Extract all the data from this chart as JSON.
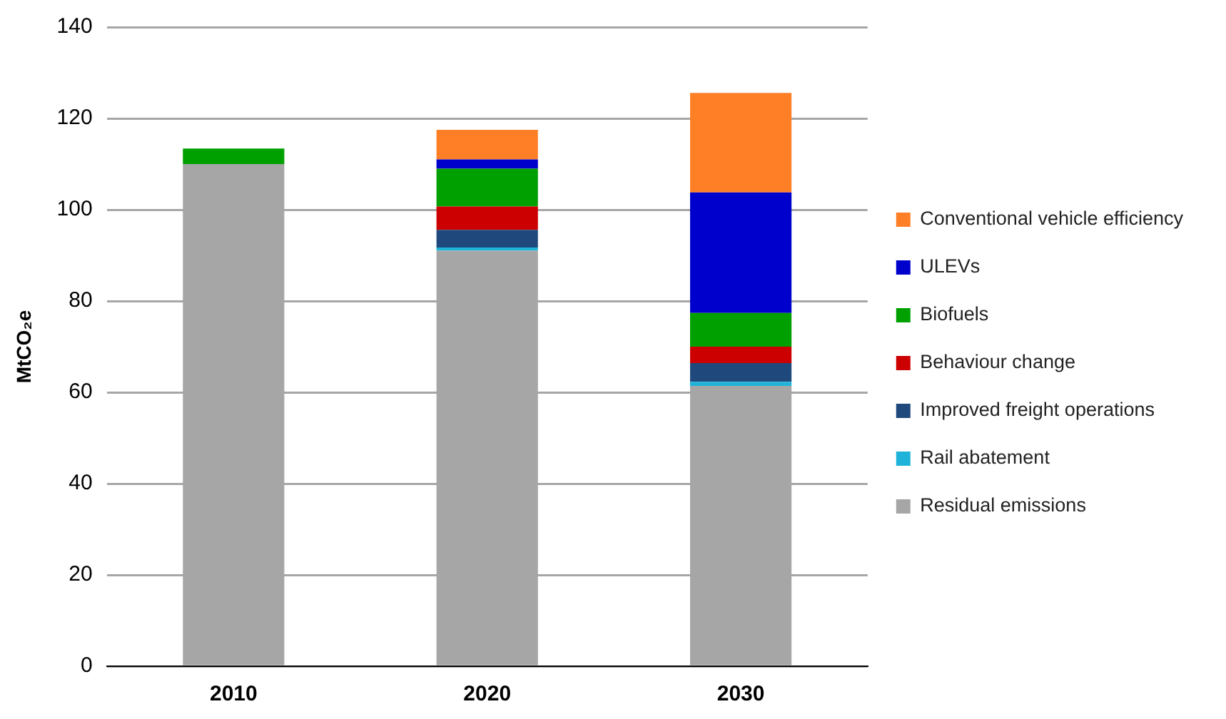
{
  "chart_data": {
    "type": "bar",
    "stacked": true,
    "ylabel": "MtCO₂e",
    "categories": [
      "2010",
      "2020",
      "2030"
    ],
    "ylim": [
      0,
      140
    ],
    "yticks": [
      0,
      20,
      40,
      60,
      80,
      100,
      120,
      140
    ],
    "grid": "y",
    "legend": "right",
    "series": [
      {
        "name": "Residual emissions",
        "color": "#a6a6a6",
        "values": [
          110,
          91,
          61.4
        ]
      },
      {
        "name": "Rail abatement",
        "color": "#1fb3d9",
        "values": [
          null,
          0.7,
          0.9
        ]
      },
      {
        "name": "Improved freight operations",
        "color": "#1f497d",
        "values": [
          null,
          3.9,
          4.1
        ]
      },
      {
        "name": "Behaviour change",
        "color": "#cc0000",
        "values": [
          null,
          5.1,
          3.6
        ]
      },
      {
        "name": "Biofuels",
        "color": "#00a000",
        "values": [
          3.4,
          8.3,
          7.4
        ]
      },
      {
        "name": "ULEVs",
        "color": "#0000cc",
        "values": [
          null,
          2,
          26.4
        ]
      },
      {
        "name": "Conventional vehicle efficiency",
        "color": "#ff7f27",
        "values": [
          null,
          6.5,
          21.8
        ]
      }
    ]
  }
}
